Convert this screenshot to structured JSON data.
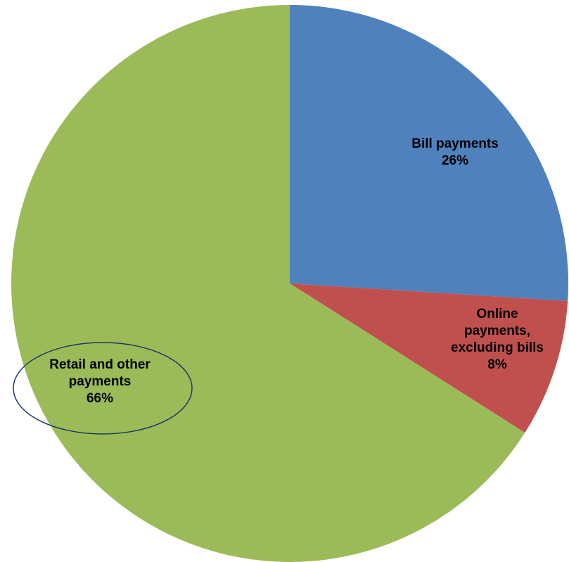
{
  "chart_data": {
    "type": "pie",
    "slices": [
      {
        "key": "bill",
        "label_lines": [
          "Bill payments"
        ],
        "percent_label": "26%",
        "value": 26,
        "color": "#4f81bd"
      },
      {
        "key": "online",
        "label_lines": [
          "Online",
          "payments,",
          "excluding bills"
        ],
        "percent_label": "8%",
        "value": 8,
        "color": "#c0504d"
      },
      {
        "key": "retail",
        "label_lines": [
          "Retail and other",
          "payments"
        ],
        "percent_label": "66%",
        "value": 66,
        "color": "#9bbb59"
      }
    ],
    "start_angle_deg": 0,
    "direction": "clockwise",
    "highlighted_slice": "retail",
    "highlight_color": "#1f3864"
  }
}
